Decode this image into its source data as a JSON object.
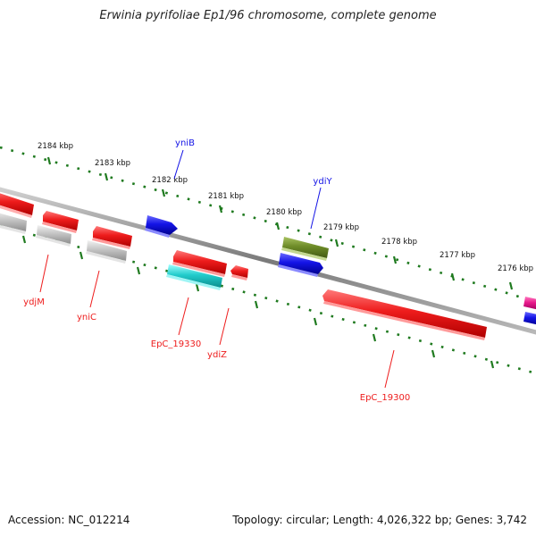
{
  "title": "Erwinia pyrifoliae Ep1/96 chromosome, complete genome",
  "footer": {
    "accession": "Accession: NC_012214",
    "summary": "Topology: circular; Length: 4,026,322 bp; Genes: 3,742"
  },
  "colors": {
    "backbone": "#8a8a8a",
    "tick": "#1f7a1f",
    "red": "#ee1c1c",
    "grey": "#bdbdbd",
    "blue": "#1414e6",
    "cyan": "#22cccc",
    "olive": "#6e8c28",
    "magenta": "#e8198b"
  },
  "scale": {
    "labels": [
      "2184 kbp",
      "2183 kbp",
      "2182 kbp",
      "2181 kbp",
      "2180 kbp",
      "2179 kbp",
      "2178 kbp",
      "2177 kbp",
      "2176 kbp"
    ]
  },
  "genes": [
    {
      "label": "yniB",
      "color": "blue"
    },
    {
      "label": "ydiY",
      "color": "blue"
    },
    {
      "label": "ydjM",
      "color": "red"
    },
    {
      "label": "yniC",
      "color": "red"
    },
    {
      "label": "EpC_19330",
      "color": "red"
    },
    {
      "label": "ydiZ",
      "color": "red"
    },
    {
      "label": "EpC_19300",
      "color": "red"
    }
  ]
}
